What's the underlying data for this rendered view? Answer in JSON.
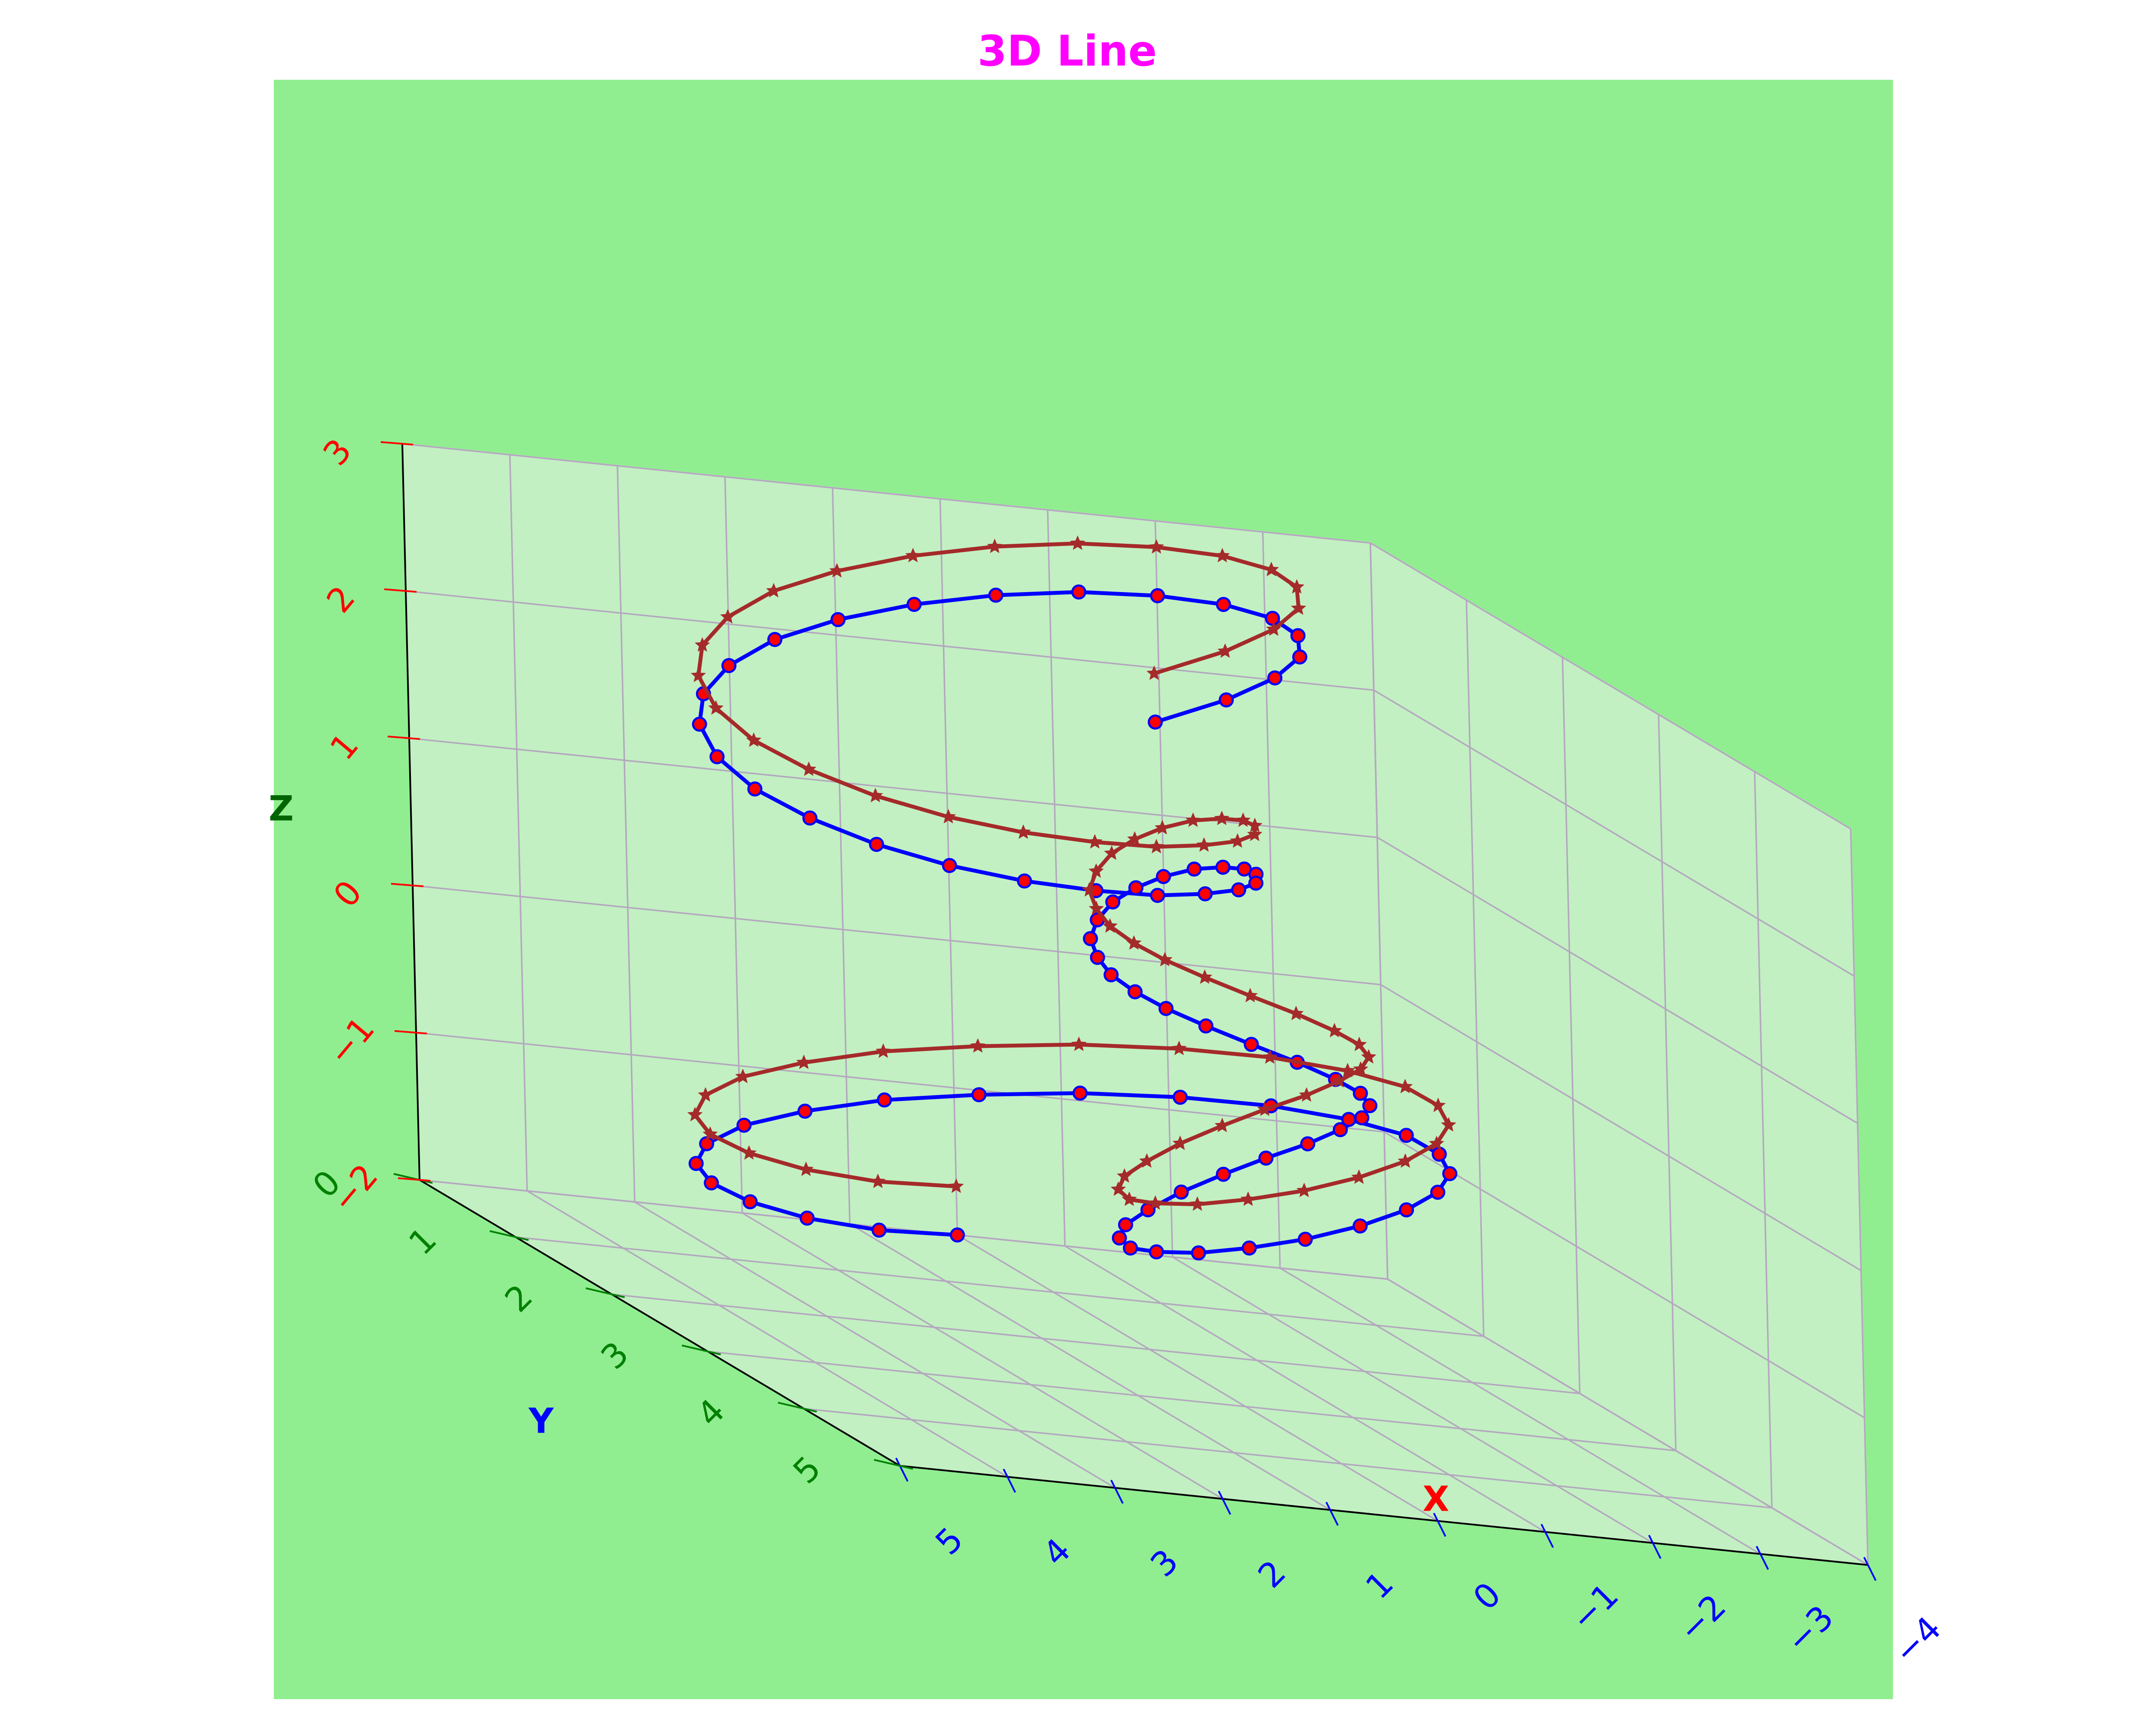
{
  "colors": {
    "figure_bg": "#ffffff",
    "axes_bg": "#90ee90",
    "pane": "#c2f0c2",
    "grid": "#b4a7bf",
    "axis_line": "#000000",
    "title": "#ff00ff",
    "x_label": "#ff0000",
    "y_label": "#0000ff",
    "z_label": "#006400",
    "x_ticks": "#0000ff",
    "y_ticks": "#008000",
    "z_ticks": "#ff0000"
  },
  "chart_data": {
    "type": "line3d",
    "title": "3D Line",
    "xlabel": "X",
    "ylabel": "Y",
    "zlabel": "Z",
    "xlim": [
      -4,
      5
    ],
    "ylim": [
      0,
      5
    ],
    "zlim": [
      -2,
      3
    ],
    "xticks": [
      "5",
      "4",
      "3",
      "2",
      "1",
      "0",
      "−1",
      "−2",
      "−3",
      "−4"
    ],
    "yticks": [
      "0",
      "1",
      "2",
      "3",
      "4",
      "5"
    ],
    "zticks": [
      "−2",
      "−1",
      "0",
      "1",
      "2",
      "3"
    ],
    "grid": true,
    "series": [
      {
        "line_color": "#0000ff",
        "marker": "circle",
        "marker_face": "#ff0000",
        "marker_edge": "#0000ff",
        "x": [
          -0.0,
          0.87,
          1.67,
          2.33,
          2.82,
          3.09,
          3.12,
          2.9,
          2.47,
          1.86,
          1.11,
          0.3,
          -0.5,
          -1.22,
          -1.81,
          -2.21,
          -2.39,
          -2.36,
          -2.12,
          -1.71,
          -1.16,
          -0.54,
          0.09,
          0.67,
          1.15,
          1.48,
          1.66,
          1.67,
          1.52,
          1.25,
          0.88,
          0.48,
          0.07,
          -0.29,
          -0.59,
          -0.8,
          -0.9,
          -0.91,
          -0.83,
          -0.68,
          -0.49,
          -0.29,
          -0.12,
          0.02,
          0.09,
          0.09,
          -0.04,
          -0.25,
          -0.53,
          -0.86,
          -1.21,
          -1.54,
          -1.8,
          -1.97,
          -2.02,
          -1.92,
          -1.66,
          -1.26,
          -0.74,
          -0.12,
          0.54,
          1.18,
          1.76,
          2.24,
          2.55,
          2.68,
          2.61,
          2.34,
          1.88,
          1.26,
          0.53,
          -0.26,
          -1.06,
          -1.82,
          -2.45,
          -2.93,
          -3.19,
          -3.22,
          -3.01,
          -2.57,
          -1.93
        ],
        "y": [
          0.0,
          0.16,
          0.31,
          0.46,
          0.61,
          0.76,
          0.91,
          1.06,
          1.22,
          1.37,
          1.52,
          1.67,
          1.82,
          1.96,
          2.11,
          2.26,
          2.4,
          2.54,
          2.68,
          2.81,
          2.94,
          3.06,
          3.18,
          3.3,
          3.4,
          3.5,
          3.59,
          3.67,
          3.74,
          3.79,
          3.82,
          3.82,
          3.8,
          3.74,
          3.63,
          3.48,
          3.27,
          3.0,
          2.69,
          2.38,
          2.12,
          1.93,
          1.8,
          1.71,
          1.65,
          1.58,
          1.51,
          1.44,
          1.37,
          1.29,
          1.22,
          1.15,
          1.08,
          1.01,
          0.95,
          0.88,
          0.82,
          0.77,
          0.71,
          0.66,
          0.62,
          0.58,
          0.54,
          0.51,
          0.47,
          0.44,
          0.41,
          0.38,
          0.35,
          0.32,
          0.3,
          0.27,
          0.24,
          0.21,
          0.19,
          0.16,
          0.13,
          0.11,
          0.08,
          0.06,
          0.03
        ],
        "z": [
          -2.0,
          -1.97,
          -1.89,
          -1.77,
          -1.62,
          -1.45,
          -1.26,
          -1.06,
          -0.87,
          -0.69,
          -0.54,
          -0.41,
          -0.32,
          -0.27,
          -0.26,
          -0.28,
          -0.34,
          -0.42,
          -0.51,
          -0.61,
          -0.71,
          -0.8,
          -0.86,
          -0.89,
          -0.88,
          -0.84,
          -0.75,
          -0.63,
          -0.49,
          -0.33,
          -0.17,
          -0.03,
          0.09,
          0.19,
          0.25,
          0.29,
          0.3,
          0.29,
          0.28,
          0.27,
          0.28,
          0.31,
          0.36,
          0.43,
          0.52,
          0.62,
          0.73,
          0.84,
          0.93,
          1.0,
          1.05,
          1.06,
          1.04,
          0.99,
          0.91,
          0.83,
          0.76,
          0.7,
          0.67,
          0.67,
          0.71,
          0.79,
          0.91,
          1.06,
          1.24,
          1.44,
          1.64,
          1.84,
          2.04,
          2.21,
          2.36,
          2.47,
          2.54,
          2.56,
          2.54,
          2.47,
          2.36,
          2.21,
          2.04,
          1.85,
          1.64
        ]
      },
      {
        "line_color": "#a52a2a",
        "marker": "star",
        "marker_face": "#a52a2a",
        "marker_edge": "#a52a2a",
        "x": [
          -0.0,
          0.87,
          1.67,
          2.33,
          2.82,
          3.09,
          3.12,
          2.9,
          2.47,
          1.86,
          1.11,
          0.3,
          -0.5,
          -1.22,
          -1.81,
          -2.21,
          -2.39,
          -2.36,
          -2.12,
          -1.71,
          -1.16,
          -0.54,
          0.09,
          0.67,
          1.15,
          1.48,
          1.66,
          1.67,
          1.52,
          1.25,
          0.88,
          0.48,
          0.07,
          -0.29,
          -0.59,
          -0.8,
          -0.9,
          -0.91,
          -0.83,
          -0.68,
          -0.49,
          -0.29,
          -0.12,
          0.02,
          0.09,
          0.09,
          -0.04,
          -0.25,
          -0.53,
          -0.86,
          -1.21,
          -1.54,
          -1.8,
          -1.97,
          -2.02,
          -1.92,
          -1.66,
          -1.26,
          -0.74,
          -0.12,
          0.54,
          1.18,
          1.76,
          2.24,
          2.55,
          2.68,
          2.61,
          2.34,
          1.88,
          1.26,
          0.53,
          -0.26,
          -1.06,
          -1.82,
          -2.45,
          -2.93,
          -3.19,
          -3.22,
          -3.01,
          -2.57,
          -1.93
        ],
        "y": [
          0.0,
          0.16,
          0.31,
          0.46,
          0.61,
          0.76,
          0.91,
          1.06,
          1.22,
          1.37,
          1.52,
          1.67,
          1.82,
          1.96,
          2.11,
          2.26,
          2.4,
          2.54,
          2.68,
          2.81,
          2.94,
          3.06,
          3.18,
          3.3,
          3.4,
          3.5,
          3.59,
          3.67,
          3.74,
          3.79,
          3.82,
          3.82,
          3.8,
          3.74,
          3.63,
          3.48,
          3.27,
          3.0,
          2.69,
          2.38,
          2.12,
          1.93,
          1.8,
          1.71,
          1.65,
          1.58,
          1.51,
          1.44,
          1.37,
          1.29,
          1.22,
          1.15,
          1.08,
          1.01,
          0.95,
          0.88,
          0.82,
          0.77,
          0.71,
          0.66,
          0.62,
          0.58,
          0.54,
          0.51,
          0.47,
          0.44,
          0.41,
          0.38,
          0.35,
          0.32,
          0.3,
          0.27,
          0.24,
          0.21,
          0.19,
          0.16,
          0.13,
          0.11,
          0.08,
          0.06,
          0.03
        ],
        "z": [
          -1.67,
          -1.64,
          -1.56,
          -1.44,
          -1.29,
          -1.12,
          -0.93,
          -0.73,
          -0.54,
          -0.36,
          -0.21,
          -0.08,
          0.01,
          0.06,
          0.07,
          0.05,
          -0.01,
          -0.09,
          -0.18,
          -0.28,
          -0.38,
          -0.47,
          -0.53,
          -0.56,
          -0.55,
          -0.51,
          -0.42,
          -0.3,
          -0.16,
          -0.0,
          0.16,
          0.3,
          0.42,
          0.52,
          0.58,
          0.62,
          0.63,
          0.62,
          0.61,
          0.6,
          0.61,
          0.64,
          0.69,
          0.76,
          0.85,
          0.95,
          1.06,
          1.17,
          1.26,
          1.33,
          1.38,
          1.39,
          1.37,
          1.32,
          1.24,
          1.16,
          1.09,
          1.03,
          1.0,
          1.0,
          1.04,
          1.12,
          1.24,
          1.39,
          1.57,
          1.77,
          1.97,
          2.17,
          2.37,
          2.54,
          2.69,
          2.8,
          2.87,
          2.89,
          2.87,
          2.8,
          2.69,
          2.54,
          2.37,
          2.18,
          1.97
        ]
      }
    ]
  }
}
